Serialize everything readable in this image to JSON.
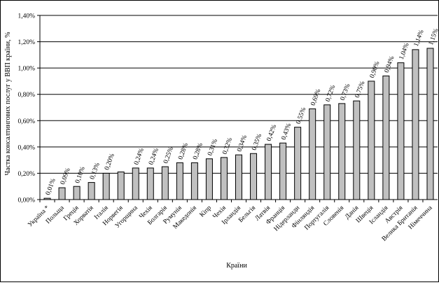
{
  "chart_data": {
    "type": "bar",
    "xlabel": "Країни",
    "ylabel": "Частка консалтингових послуг у ВВП країни, %",
    "ylim": [
      0,
      1.4
    ],
    "ytick_step": 0.2,
    "ytick_labels": [
      "0,00%",
      "0,20%",
      "0,40%",
      "0,60%",
      "0,80%",
      "1,00%",
      "1,20%",
      "1,40%"
    ],
    "grid": true,
    "legend": "none",
    "categories": [
      "Україна *",
      "Польща",
      "Греція",
      "Хорватія",
      "Італія",
      "Норвегія",
      "Угорщина",
      "Чехія",
      "Болгарія",
      "Румунія",
      "Македонія",
      "Кіпр",
      "Чехія",
      "Ірландія",
      "Бельгія",
      "Латвія",
      "Франція",
      "Нідерланди",
      "Фінляндія",
      "Португалія",
      "Словенія",
      "Данія",
      "Швеція",
      "Ісландія",
      "Австрія",
      "Велика Британія",
      "Німеччина"
    ],
    "values": [
      0.01,
      0.09,
      0.1,
      0.13,
      0.2,
      0.21,
      0.24,
      0.24,
      0.25,
      0.28,
      0.28,
      0.31,
      0.32,
      0.34,
      0.35,
      0.42,
      0.43,
      0.55,
      0.69,
      0.72,
      0.73,
      0.75,
      0.9,
      0.94,
      1.04,
      1.14,
      1.15
    ],
    "data_labels": [
      "0,01%",
      "0,09%",
      "0,10%",
      "0,13%",
      "0,20%",
      "",
      "0,24%",
      "0,24%",
      "0,25%",
      "0,28%",
      "0,28%",
      "0,31%",
      "0,32%",
      "0,34%",
      "0,35%",
      "0,42%",
      "0,43%",
      "0,55%",
      "0,69%",
      "0,72%",
      "0,73%",
      "0,75%",
      "0,90%",
      "0,94%",
      "1,04%",
      "1,14%",
      "1,15%"
    ],
    "colors": {
      "bar_fill": "#c0c0c0",
      "bar_stroke": "#000000",
      "grid": "#000000"
    }
  }
}
